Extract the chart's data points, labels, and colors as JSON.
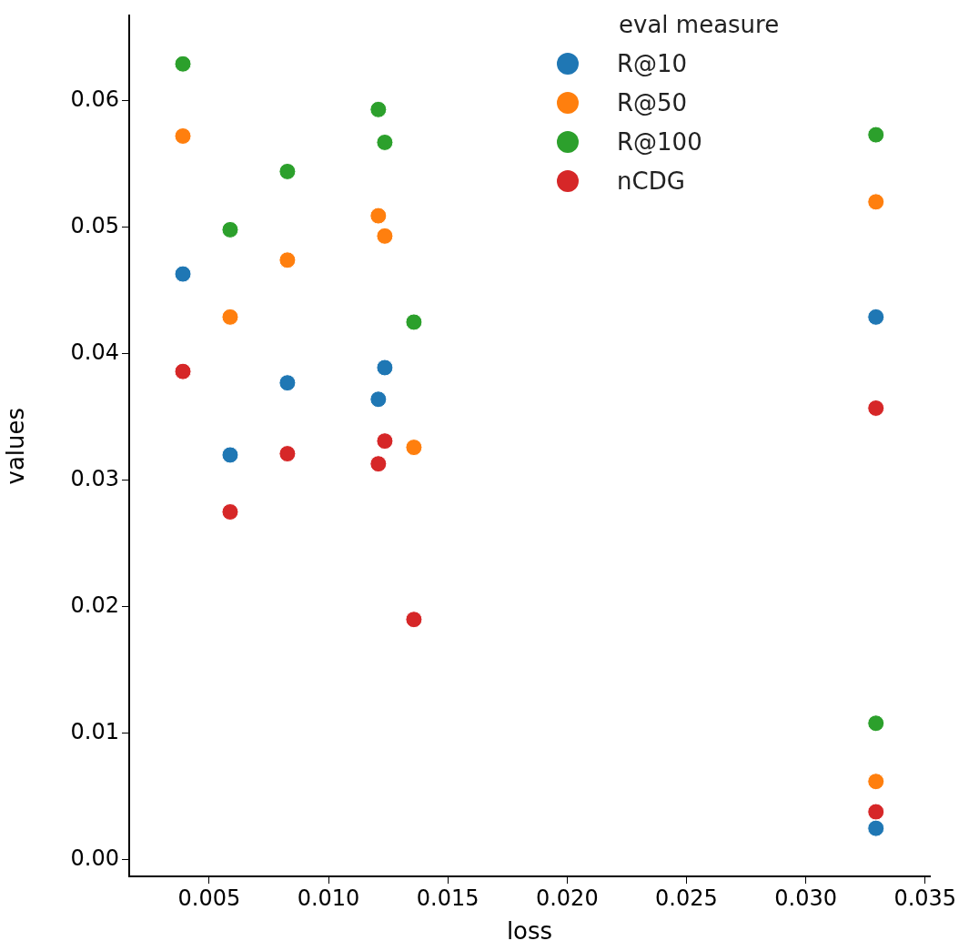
{
  "chart_data": {
    "type": "scatter",
    "xlabel": "loss",
    "ylabel": "values",
    "legend_title": "eval measure",
    "legend": "top right",
    "grid": false,
    "marker": "circle",
    "xlim": [
      0.00165,
      0.0352
    ],
    "ylim": [
      -0.0013,
      0.0667
    ],
    "xticks": [
      0.005,
      {
        "value": 0.01,
        "label": "0.010"
      },
      0.015,
      {
        "value": 0.02,
        "label": "0.020"
      },
      0.025,
      {
        "value": 0.03,
        "label": "0.030"
      },
      0.035
    ],
    "yticks": [
      {
        "value": 0,
        "label": "0.00"
      },
      {
        "value": 0.01,
        "label": "0.01"
      },
      {
        "value": 0.02,
        "label": "0.02"
      },
      {
        "value": 0.03,
        "label": "0.03"
      },
      {
        "value": 0.04,
        "label": "0.04"
      },
      {
        "value": 0.05,
        "label": "0.05"
      },
      {
        "value": 0.06,
        "label": "0.06"
      }
    ],
    "series": [
      {
        "name": "R@10",
        "color": "#1f77b4",
        "x": [
          0.0039,
          0.00588,
          0.00828,
          0.01209,
          0.01236,
          0.03294,
          0.03294
        ],
        "values": [
          0.0463,
          0.032,
          0.0377,
          0.0364,
          0.0389,
          0.0429,
          0.0025
        ]
      },
      {
        "name": "R@50",
        "color": "#ff7f0e",
        "x": [
          0.0039,
          0.00588,
          0.00828,
          0.01209,
          0.01236,
          0.01358,
          0.03294,
          0.03294
        ],
        "values": [
          0.0572,
          0.0429,
          0.0474,
          0.0509,
          0.0493,
          0.0326,
          0.052,
          0.0062
        ]
      },
      {
        "name": "R@100",
        "color": "#2ca02c",
        "x": [
          0.0039,
          0.00588,
          0.00828,
          0.01209,
          0.01236,
          0.01358,
          0.03294,
          0.03294
        ],
        "values": [
          0.0629,
          0.0498,
          0.0544,
          0.0593,
          0.0567,
          0.0425,
          0.0573,
          0.0108
        ]
      },
      {
        "name": "nCDG",
        "color": "#d62728",
        "x": [
          0.0039,
          0.00588,
          0.00828,
          0.01209,
          0.01236,
          0.01358,
          0.03294,
          0.03294
        ],
        "values": [
          0.0386,
          0.0275,
          0.0321,
          0.0313,
          0.0331,
          0.019,
          0.0357,
          0.0038
        ]
      }
    ]
  }
}
